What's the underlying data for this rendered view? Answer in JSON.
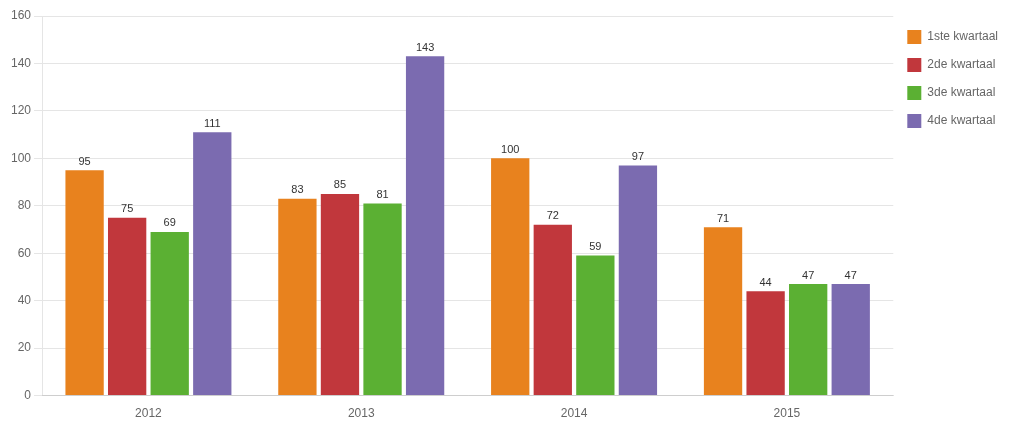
{
  "chart_data": {
    "type": "bar",
    "categories": [
      "2012",
      "2013",
      "2014",
      "2015"
    ],
    "series": [
      {
        "name": "1ste kwartaal",
        "color": "#E8821E",
        "values": [
          95,
          83,
          100,
          71
        ]
      },
      {
        "name": "2de kwartaal",
        "color": "#C1373C",
        "values": [
          75,
          85,
          72,
          44
        ]
      },
      {
        "name": "3de kwartaal",
        "color": "#5BB033",
        "values": [
          69,
          81,
          59,
          47
        ]
      },
      {
        "name": "4de kwartaal",
        "color": "#7B6BB0",
        "values": [
          111,
          143,
          97,
          47
        ]
      }
    ],
    "ylim": [
      0,
      160
    ],
    "yticks": [
      0,
      20,
      40,
      60,
      80,
      100,
      120,
      140,
      160
    ],
    "grid": true,
    "legend": "right",
    "data_labels": true
  }
}
